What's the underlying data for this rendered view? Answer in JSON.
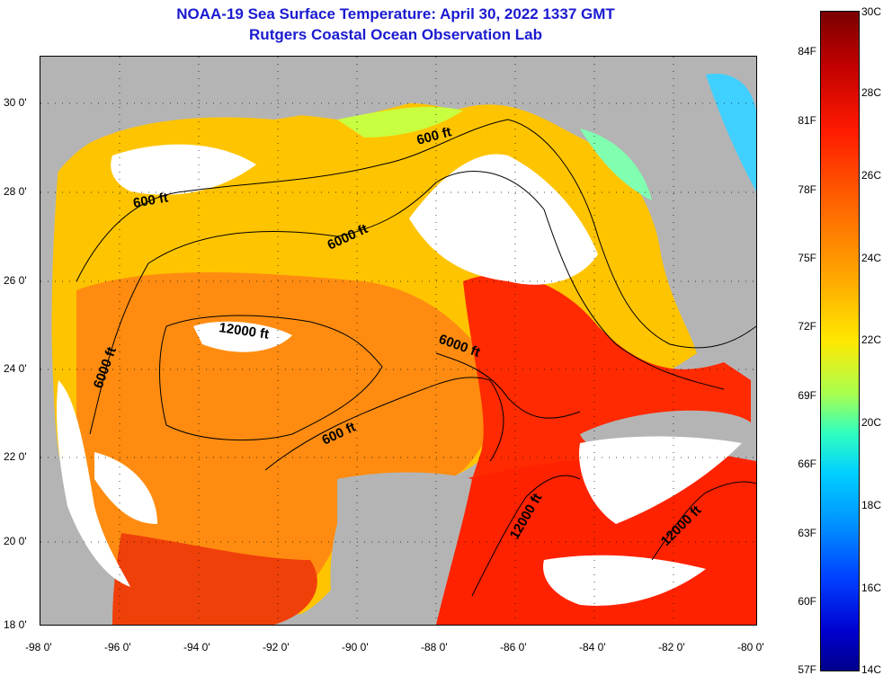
{
  "title": {
    "line1": "NOAA-19 Sea Surface Temperature:  April 30, 2022 1337 GMT",
    "line2": "Rutgers Coastal Ocean Observation Lab"
  },
  "map": {
    "lat_labels": [
      "30 0'",
      "28 0'",
      "26 0'",
      "24 0'",
      "22 0'",
      "20 0'",
      "18 0'"
    ],
    "lon_labels": [
      "-98 0'",
      "-96 0'",
      "-94 0'",
      "-92 0'",
      "-90 0'",
      "-88 0'",
      "-86 0'",
      "-84 0'",
      "-82 0'",
      "-80 0'"
    ],
    "contour_labels": [
      "600 ft",
      "600 ft",
      "6000 ft",
      "12000 ft",
      "6000 ft",
      "6000 ft",
      "600 ft",
      "12000 ft",
      "12000 ft"
    ],
    "colors": {
      "land": "#b4b4b4",
      "cloud": "#ffffff",
      "warm": "#ff2a00",
      "mid": "#ff8a00",
      "cool": "#ffd000"
    }
  },
  "colorbar": {
    "fahrenheit": [
      "84F",
      "81F",
      "78F",
      "75F",
      "72F",
      "69F",
      "66F",
      "63F",
      "60F",
      "57F"
    ],
    "celsius": [
      "30C",
      "28C",
      "26C",
      "24C",
      "22C",
      "20C",
      "18C",
      "16C",
      "14C"
    ]
  }
}
